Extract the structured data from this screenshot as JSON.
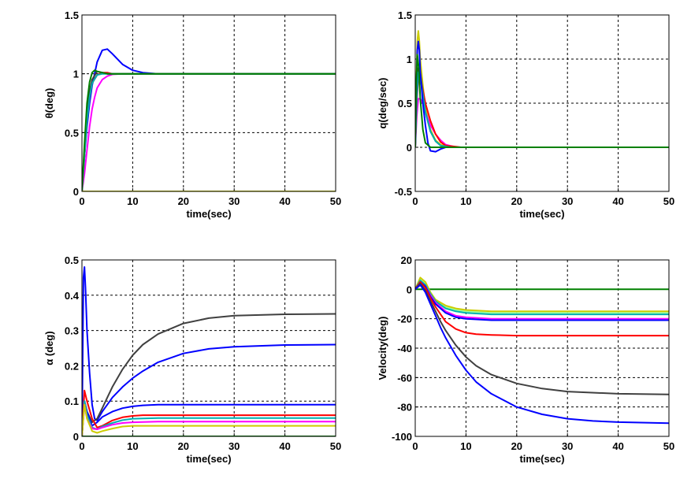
{
  "chart_data": [
    {
      "type": "line",
      "xlabel": "time(sec)",
      "ylabel": "θ(deg)",
      "xlim": [
        0,
        50
      ],
      "ylim": [
        0,
        1.5
      ],
      "xticks": [
        "0",
        "10",
        "20",
        "30",
        "40",
        "50"
      ],
      "yticks": [
        "0",
        "0.5",
        "1",
        "1.5"
      ],
      "grid": true,
      "series": [
        {
          "color": "#0000ff",
          "x": [
            0,
            0.5,
            1,
            1.5,
            2,
            3,
            4,
            5,
            6,
            8,
            10,
            12,
            15,
            20,
            30,
            50
          ],
          "y": [
            0,
            0.3,
            0.55,
            0.75,
            0.9,
            1.1,
            1.2,
            1.21,
            1.17,
            1.08,
            1.03,
            1.01,
            1.0,
            1.0,
            1.0,
            1.0
          ]
        },
        {
          "color": "#ff00ff",
          "x": [
            0,
            0.5,
            1,
            1.5,
            2,
            2.5,
            3,
            4,
            5,
            6,
            8,
            10,
            50
          ],
          "y": [
            0,
            0.15,
            0.35,
            0.55,
            0.7,
            0.8,
            0.88,
            0.95,
            0.98,
            0.995,
            1.0,
            1.0,
            1.0
          ]
        },
        {
          "color": "#ff0000",
          "x": [
            0,
            0.5,
            1,
            1.5,
            2,
            3,
            4,
            5,
            6,
            8,
            50
          ],
          "y": [
            0,
            0.3,
            0.6,
            0.8,
            0.92,
            0.99,
            1.01,
            1.01,
            1.0,
            1.0,
            1.0
          ]
        },
        {
          "color": "#404040",
          "x": [
            0,
            0.5,
            1,
            1.5,
            2,
            3,
            4,
            5,
            7,
            50
          ],
          "y": [
            0,
            0.35,
            0.65,
            0.85,
            0.95,
            1.02,
            1.01,
            1.0,
            1.0,
            1.0
          ]
        },
        {
          "color": "#00b0b0",
          "x": [
            0,
            0.5,
            1,
            1.5,
            2,
            3,
            4,
            6,
            50
          ],
          "y": [
            0,
            0.3,
            0.6,
            0.8,
            0.92,
            0.99,
            1.0,
            1.0,
            1.0
          ]
        },
        {
          "color": "#008000",
          "x": [
            0,
            0.5,
            1,
            1.5,
            2,
            2.5,
            3,
            4,
            5,
            7,
            50
          ],
          "y": [
            0,
            0.4,
            0.75,
            0.93,
            1.01,
            1.03,
            1.02,
            1.01,
            1.0,
            1.0,
            1.0
          ]
        },
        {
          "color": "#cccc00",
          "x": [
            0,
            50
          ],
          "y": [
            0,
            0
          ]
        }
      ]
    },
    {
      "type": "line",
      "xlabel": "time(sec)",
      "ylabel": "q(deg/sec)",
      "xlim": [
        0,
        50
      ],
      "ylim": [
        -0.5,
        1.5
      ],
      "xticks": [
        "0",
        "10",
        "20",
        "30",
        "40",
        "50"
      ],
      "yticks": [
        "-0.5",
        "0",
        "0.5",
        "1",
        "1.5"
      ],
      "grid": true,
      "series": [
        {
          "color": "#cccc00",
          "x": [
            0,
            0.2,
            0.4,
            0.6,
            0.8,
            1,
            1.5,
            2,
            3,
            4,
            5,
            6,
            8,
            50
          ],
          "y": [
            0,
            0.7,
            1.2,
            1.32,
            1.2,
            1.0,
            0.7,
            0.45,
            0.2,
            0.08,
            0.03,
            0.01,
            0,
            0
          ]
        },
        {
          "color": "#ff00ff",
          "x": [
            0,
            0.3,
            0.6,
            1,
            1.5,
            2,
            3,
            4,
            5,
            6,
            8,
            50
          ],
          "y": [
            0,
            0.35,
            0.55,
            0.55,
            0.5,
            0.4,
            0.25,
            0.15,
            0.08,
            0.03,
            0,
            0
          ]
        },
        {
          "color": "#ff0000",
          "x": [
            0,
            0.3,
            0.6,
            1,
            1.5,
            2,
            3,
            4,
            5,
            6,
            9,
            50
          ],
          "y": [
            0,
            0.5,
            0.8,
            0.8,
            0.65,
            0.5,
            0.3,
            0.15,
            0.06,
            0.02,
            0,
            0
          ]
        },
        {
          "color": "#404040",
          "x": [
            0,
            0.3,
            0.6,
            1,
            1.5,
            2,
            3,
            4,
            5,
            7,
            50
          ],
          "y": [
            0,
            0.6,
            0.9,
            0.85,
            0.6,
            0.4,
            0.18,
            0.07,
            0.02,
            0,
            0
          ]
        },
        {
          "color": "#00b0b0",
          "x": [
            0,
            0.3,
            0.6,
            1,
            1.5,
            2,
            3,
            4,
            5,
            7,
            50
          ],
          "y": [
            0,
            0.55,
            0.85,
            0.8,
            0.6,
            0.4,
            0.18,
            0.07,
            0.02,
            0,
            0
          ]
        },
        {
          "color": "#0000ff",
          "x": [
            0,
            0.2,
            0.4,
            0.6,
            0.8,
            1,
            1.5,
            2,
            2.5,
            3,
            4,
            5,
            6,
            8,
            50
          ],
          "y": [
            0,
            0.6,
            1.1,
            1.2,
            1.1,
            0.85,
            0.5,
            0.25,
            0.05,
            -0.04,
            -0.05,
            -0.02,
            0,
            0,
            0
          ]
        },
        {
          "color": "#008000",
          "x": [
            0,
            0.2,
            0.4,
            0.7,
            1,
            1.5,
            2,
            3,
            4,
            50
          ],
          "y": [
            0,
            0.7,
            1.05,
            0.9,
            0.55,
            0.2,
            0.05,
            0,
            0,
            0
          ]
        }
      ]
    },
    {
      "type": "line",
      "xlabel": "time(sec)",
      "ylabel": "α (deg)",
      "xlim": [
        0,
        50
      ],
      "ylim": [
        0,
        0.5
      ],
      "xticks": [
        "0",
        "10",
        "20",
        "30",
        "40",
        "50"
      ],
      "yticks": [
        "0",
        "0.1",
        "0.2",
        "0.3",
        "0.4",
        "0.5"
      ],
      "grid": true,
      "series": [
        {
          "color": "#0000ff",
          "x": [
            0,
            0.3,
            0.5,
            0.7,
            1,
            1.5,
            2,
            2.5,
            3,
            4,
            5,
            6,
            8,
            10,
            12,
            15,
            20,
            25,
            30,
            40,
            50
          ],
          "y": [
            0,
            0.45,
            0.48,
            0.42,
            0.3,
            0.18,
            0.09,
            0.05,
            0.045,
            0.07,
            0.09,
            0.11,
            0.14,
            0.165,
            0.185,
            0.21,
            0.235,
            0.248,
            0.254,
            0.259,
            0.26
          ]
        },
        {
          "color": "#404040",
          "x": [
            0,
            0.5,
            1,
            2,
            3,
            4,
            5,
            6,
            8,
            10,
            12,
            15,
            20,
            25,
            30,
            40,
            50
          ],
          "y": [
            0,
            0.1,
            0.07,
            0.04,
            0.05,
            0.08,
            0.11,
            0.14,
            0.19,
            0.23,
            0.26,
            0.29,
            0.32,
            0.335,
            0.342,
            0.346,
            0.347
          ]
        },
        {
          "color": "#0000ff",
          "x": [
            0,
            0.5,
            1,
            2,
            3,
            4,
            6,
            8,
            10,
            12,
            15,
            50
          ],
          "y": [
            0,
            0.1,
            0.07,
            0.03,
            0.04,
            0.055,
            0.07,
            0.08,
            0.085,
            0.088,
            0.09,
            0.09
          ]
        },
        {
          "color": "#ff0000",
          "x": [
            0,
            0.5,
            1,
            2,
            3,
            4,
            6,
            8,
            10,
            12,
            15,
            50
          ],
          "y": [
            0,
            0.13,
            0.1,
            0.05,
            0.025,
            0.03,
            0.045,
            0.054,
            0.058,
            0.06,
            0.06,
            0.06
          ]
        },
        {
          "color": "#00b0b0",
          "x": [
            0,
            0.5,
            1,
            2,
            3,
            4,
            6,
            8,
            10,
            15,
            50
          ],
          "y": [
            0,
            0.1,
            0.06,
            0.025,
            0.02,
            0.028,
            0.038,
            0.046,
            0.05,
            0.052,
            0.052
          ]
        },
        {
          "color": "#ff00ff",
          "x": [
            0,
            0.5,
            1,
            2,
            3,
            4,
            6,
            8,
            10,
            15,
            50
          ],
          "y": [
            0,
            0.09,
            0.05,
            0.022,
            0.02,
            0.025,
            0.033,
            0.038,
            0.04,
            0.042,
            0.042
          ]
        },
        {
          "color": "#cccc00",
          "x": [
            0,
            0.5,
            1,
            2,
            3,
            4,
            6,
            8,
            10,
            50
          ],
          "y": [
            0,
            0.09,
            0.05,
            0.015,
            0.01,
            0.015,
            0.022,
            0.028,
            0.03,
            0.03
          ]
        },
        {
          "color": "#008000",
          "x": [
            0,
            50
          ],
          "y": [
            0,
            0
          ]
        }
      ]
    },
    {
      "type": "line",
      "xlabel": "time(sec)",
      "ylabel": "Velocity(deg)",
      "xlim": [
        0,
        50
      ],
      "ylim": [
        -100,
        20
      ],
      "xticks": [
        "0",
        "10",
        "20",
        "30",
        "40",
        "50"
      ],
      "yticks": [
        "-100",
        "-80",
        "-60",
        "-40",
        "-20",
        "0",
        "20"
      ],
      "grid": true,
      "series": [
        {
          "color": "#008000",
          "x": [
            0,
            50
          ],
          "y": [
            0,
            0
          ]
        },
        {
          "color": "#99ff99",
          "x": [
            0,
            1,
            2,
            3,
            4,
            6,
            8,
            10,
            15,
            50
          ],
          "y": [
            0,
            7,
            4,
            -3,
            -8,
            -12,
            -14,
            -15,
            -16,
            -16
          ]
        },
        {
          "color": "#cccc00",
          "x": [
            0,
            1,
            2,
            3,
            4,
            6,
            8,
            10,
            15,
            50
          ],
          "y": [
            0,
            8,
            5,
            -2,
            -7,
            -11,
            -13,
            -14,
            -15,
            -15
          ]
        },
        {
          "color": "#00b0b0",
          "x": [
            0,
            1,
            2,
            3,
            4,
            6,
            8,
            10,
            15,
            50
          ],
          "y": [
            0,
            6,
            3,
            -3,
            -8,
            -13,
            -15,
            -16,
            -17,
            -17
          ]
        },
        {
          "color": "#ff00ff",
          "x": [
            0,
            1,
            2,
            3,
            4,
            6,
            8,
            10,
            15,
            50
          ],
          "y": [
            0,
            5,
            2,
            -4,
            -9,
            -15,
            -18,
            -19,
            -20,
            -20
          ]
        },
        {
          "color": "#0000ff",
          "x": [
            0,
            1,
            2,
            3,
            4,
            6,
            8,
            10,
            15,
            50
          ],
          "y": [
            0,
            5,
            2,
            -5,
            -10,
            -16,
            -19,
            -20,
            -21,
            -21
          ]
        },
        {
          "color": "#ff0000",
          "x": [
            0,
            1,
            2,
            3,
            4,
            5,
            6,
            8,
            10,
            12,
            15,
            20,
            50
          ],
          "y": [
            0,
            5,
            1,
            -6,
            -12,
            -17,
            -22,
            -27,
            -29.5,
            -30.5,
            -31,
            -31.5,
            -31.5
          ]
        },
        {
          "color": "#404040",
          "x": [
            0,
            1,
            2,
            3,
            4,
            5,
            6,
            8,
            10,
            12,
            15,
            20,
            25,
            30,
            40,
            50
          ],
          "y": [
            0,
            4,
            -1,
            -8,
            -15,
            -22,
            -28,
            -38,
            -46,
            -52,
            -58,
            -64,
            -67.5,
            -69.5,
            -71,
            -71.5
          ]
        },
        {
          "color": "#0000ff",
          "x": [
            0,
            1,
            2,
            3,
            4,
            5,
            6,
            8,
            10,
            12,
            15,
            20,
            25,
            30,
            35,
            40,
            50
          ],
          "y": [
            0,
            3,
            -2,
            -10,
            -18,
            -26,
            -33,
            -45,
            -55,
            -63,
            -71,
            -80,
            -85,
            -88,
            -89.5,
            -90.3,
            -91
          ]
        }
      ]
    }
  ]
}
